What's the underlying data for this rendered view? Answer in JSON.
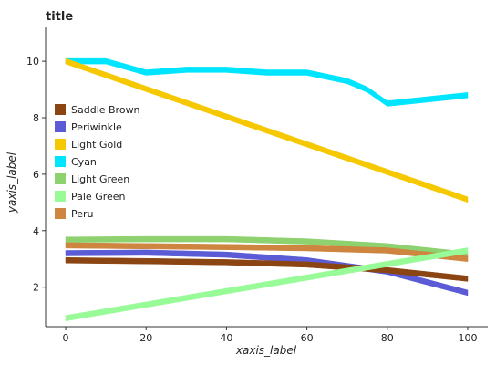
{
  "chart_data": {
    "type": "area",
    "title": "title",
    "xlabel": "xaxis_label",
    "ylabel": "yaxis_label",
    "xlim": [
      -5,
      105
    ],
    "ylim": [
      0.6,
      11.2
    ],
    "xticks": [
      0,
      20,
      40,
      60,
      80,
      100
    ],
    "yticks": [
      2,
      4,
      6,
      8,
      10
    ],
    "legend": "overlay-left",
    "series": [
      {
        "name": "Cyan",
        "color": "#00E5FF",
        "x": [
          0,
          10,
          20,
          30,
          40,
          50,
          60,
          70,
          75,
          80,
          100
        ],
        "y": [
          10.0,
          10.0,
          9.6,
          9.7,
          9.7,
          9.6,
          9.6,
          9.3,
          9.0,
          8.5,
          8.8
        ]
      },
      {
        "name": "Light Gold",
        "color": "#F5C800",
        "x": [
          0,
          100
        ],
        "y": [
          10.0,
          5.1
        ]
      },
      {
        "name": "Light Green",
        "color": "#8ED16F",
        "x": [
          0,
          20,
          40,
          60,
          80,
          100
        ],
        "y": [
          3.68,
          3.7,
          3.7,
          3.62,
          3.45,
          3.15
        ]
      },
      {
        "name": "Peru",
        "color": "#CD853F",
        "x": [
          0,
          20,
          40,
          60,
          80,
          100
        ],
        "y": [
          3.48,
          3.45,
          3.42,
          3.38,
          3.3,
          3.0
        ]
      },
      {
        "name": "Periwinkle",
        "color": "#5B5BD6",
        "x": [
          0,
          20,
          40,
          60,
          80,
          100
        ],
        "y": [
          3.2,
          3.22,
          3.15,
          2.95,
          2.55,
          1.8
        ]
      },
      {
        "name": "Saddle Brown",
        "color": "#8B4513",
        "x": [
          0,
          20,
          40,
          60,
          80,
          100
        ],
        "y": [
          2.95,
          2.92,
          2.88,
          2.8,
          2.6,
          2.3
        ]
      },
      {
        "name": "Pale Green",
        "color": "#98FB98",
        "x": [
          0,
          100
        ],
        "y": [
          0.9,
          3.3
        ]
      }
    ]
  }
}
